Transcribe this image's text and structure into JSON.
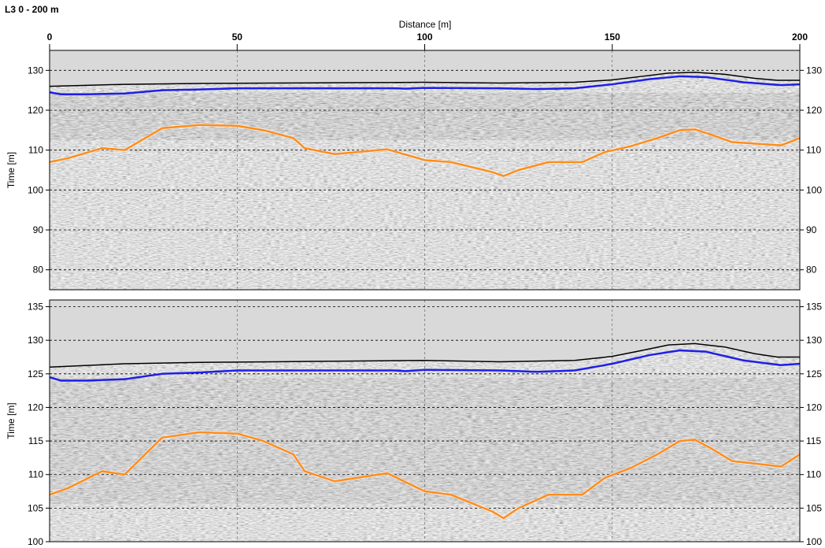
{
  "window": {
    "title": "L3 0 - 200 m"
  },
  "chart_data": [
    {
      "type": "line",
      "title": "",
      "xlabel": "Distance [m]",
      "ylabel": "Time [m]",
      "xlim": [
        0,
        200
      ],
      "ylim": [
        75,
        135
      ],
      "x_ticks": [
        "0",
        "50",
        "100",
        "150",
        "200"
      ],
      "y_ticks": [
        "80",
        "90",
        "100",
        "110",
        "120",
        "130"
      ],
      "grid": true,
      "background": "GPR radargram (grayscale wiggle image)",
      "series": [
        {
          "color": "#000000",
          "x": [
            0,
            20,
            40,
            60,
            80,
            100,
            120,
            140,
            150,
            158,
            165,
            172,
            180,
            188,
            194,
            200
          ],
          "y": [
            126,
            126.5,
            126.7,
            126.8,
            126.9,
            127,
            126.8,
            127,
            127.6,
            128.5,
            129.3,
            129.5,
            129,
            128,
            127.5,
            127.5
          ]
        },
        {
          "color": "#1f1fe6",
          "x": [
            0,
            3,
            10,
            20,
            30,
            40,
            50,
            60,
            80,
            92,
            95,
            100,
            120,
            130,
            140,
            150,
            160,
            168,
            175,
            185,
            195,
            200
          ],
          "y": [
            124.5,
            124,
            124,
            124.2,
            125,
            125.2,
            125.5,
            125.5,
            125.5,
            125.5,
            125.4,
            125.6,
            125.5,
            125.3,
            125.5,
            126.5,
            127.8,
            128.5,
            128.3,
            127,
            126.3,
            126.5
          ]
        },
        {
          "color": "#ff8c1a",
          "x": [
            0,
            5,
            14,
            20,
            30,
            40,
            50,
            57,
            65,
            68,
            76,
            90,
            100,
            107,
            118,
            121,
            125,
            133,
            142,
            148,
            155,
            162,
            168,
            172,
            176,
            182,
            195,
            200
          ],
          "y": [
            107,
            108,
            110.5,
            110,
            115.5,
            116.3,
            116.1,
            115,
            113,
            110.5,
            109,
            110.2,
            107.5,
            107,
            104.5,
            103.5,
            105,
            107,
            107,
            109.5,
            111,
            113,
            115,
            115.2,
            114,
            112,
            111.2,
            113
          ]
        }
      ]
    },
    {
      "type": "line",
      "title": "",
      "xlabel": "",
      "ylabel": "Time [m]",
      "xlim": [
        0,
        200
      ],
      "ylim": [
        100,
        136
      ],
      "x_ticks": [],
      "y_ticks": [
        "100",
        "105",
        "110",
        "115",
        "120",
        "125",
        "130",
        "135"
      ],
      "grid": true,
      "background": "GPR radargram (grayscale wiggle image)",
      "series": [
        {
          "color": "#000000",
          "x": [
            0,
            20,
            40,
            60,
            80,
            100,
            120,
            140,
            150,
            158,
            165,
            172,
            180,
            188,
            194,
            200
          ],
          "y": [
            126,
            126.5,
            126.7,
            126.8,
            126.9,
            127,
            126.8,
            127,
            127.6,
            128.5,
            129.3,
            129.5,
            129,
            128,
            127.5,
            127.5
          ]
        },
        {
          "color": "#1f1fe6",
          "x": [
            0,
            3,
            10,
            20,
            30,
            40,
            50,
            60,
            80,
            92,
            95,
            100,
            120,
            130,
            140,
            150,
            160,
            168,
            175,
            185,
            195,
            200
          ],
          "y": [
            124.5,
            124,
            124,
            124.2,
            125,
            125.2,
            125.5,
            125.5,
            125.5,
            125.5,
            125.4,
            125.6,
            125.5,
            125.3,
            125.5,
            126.5,
            127.8,
            128.5,
            128.3,
            127,
            126.3,
            126.5
          ]
        },
        {
          "color": "#ff8c1a",
          "x": [
            0,
            5,
            14,
            20,
            30,
            40,
            50,
            57,
            65,
            68,
            76,
            90,
            100,
            107,
            118,
            121,
            125,
            133,
            142,
            148,
            155,
            162,
            168,
            172,
            176,
            182,
            195,
            200
          ],
          "y": [
            107,
            108,
            110.5,
            110,
            115.5,
            116.3,
            116.1,
            115,
            113,
            110.5,
            109,
            110.2,
            107.5,
            107,
            104.5,
            103.5,
            105,
            107,
            107,
            109.5,
            111,
            113,
            115,
            115.2,
            114,
            112,
            111.2,
            113
          ]
        }
      ]
    }
  ]
}
